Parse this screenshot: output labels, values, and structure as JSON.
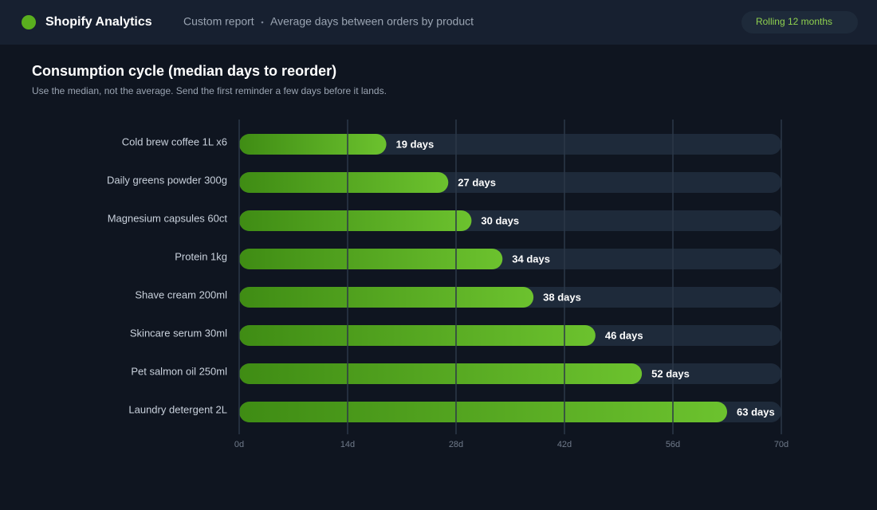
{
  "header": {
    "brand": "Shopify Analytics",
    "breadcrumb": [
      "Custom report",
      "Average days between orders by product"
    ],
    "period": "Rolling 12 months"
  },
  "chart_data": {
    "type": "bar",
    "orientation": "horizontal",
    "title": "Consumption cycle (median days to reorder)",
    "subtitle": "Use the median, not the average. Send the first reminder a few days before it lands.",
    "categories": [
      "Cold brew coffee 1L x6",
      "Daily greens powder 300g",
      "Magnesium capsules 60ct",
      "Protein 1kg",
      "Shave cream 200ml",
      "Skincare serum 30ml",
      "Pet salmon oil 250ml",
      "Laundry detergent 2L"
    ],
    "values": [
      19,
      27,
      30,
      34,
      38,
      46,
      52,
      63
    ],
    "value_labels": [
      "19 days",
      "27 days",
      "30 days",
      "34 days",
      "38 days",
      "46 days",
      "52 days",
      "63 days"
    ],
    "color": "#5fb526",
    "xlim": [
      0,
      70
    ],
    "xticks": [
      {
        "value": 0,
        "label": "0d"
      },
      {
        "value": 14,
        "label": "14d"
      },
      {
        "value": 28,
        "label": "28d"
      },
      {
        "value": 42,
        "label": "42d"
      },
      {
        "value": 56,
        "label": "56d"
      },
      {
        "value": 70,
        "label": "70d"
      }
    ],
    "grid": true
  }
}
